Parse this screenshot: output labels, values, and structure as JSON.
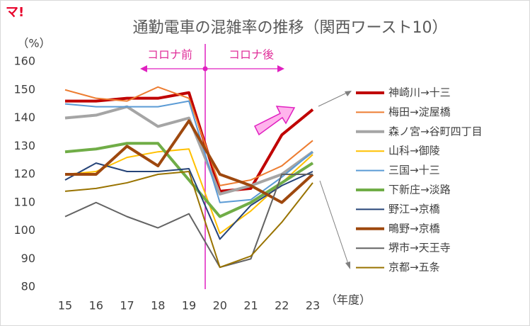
{
  "logo": "マ!",
  "chart_data": {
    "type": "line",
    "title": "通勤電車の混雑率の推移（関西ワースト10）",
    "y_label": "（%）",
    "x_label": "（年度）",
    "annotations": [
      "コロナ前",
      "コロナ後"
    ],
    "categories": [
      "15",
      "16",
      "17",
      "18",
      "19",
      "20",
      "21",
      "22",
      "23"
    ],
    "ylim": [
      80,
      160
    ],
    "yticks": [
      80,
      90,
      100,
      110,
      120,
      130,
      140,
      150,
      160
    ],
    "grid": false,
    "legend": "right",
    "series": [
      {
        "name": "神崎川→十三",
        "color": "#c00000",
        "width": 4,
        "values": [
          146,
          146,
          147,
          147,
          149,
          114,
          115,
          134,
          143
        ]
      },
      {
        "name": "梅田→淀屋橋",
        "color": "#ed7d31",
        "width": 2,
        "values": [
          150,
          147,
          146,
          151,
          147,
          116,
          118,
          123,
          132
        ]
      },
      {
        "name": "森ノ宮→谷町四丁目",
        "color": "#a5a5a5",
        "width": 4,
        "values": [
          140,
          141,
          144,
          137,
          140,
          113,
          116,
          120,
          128
        ]
      },
      {
        "name": "山科→御陵",
        "color": "#ffc000",
        "width": 2,
        "values": [
          120,
          121,
          126,
          128,
          129,
          99,
          107,
          117,
          127
        ]
      },
      {
        "name": "三国→十三",
        "color": "#5b9bd5",
        "width": 2,
        "values": [
          145,
          144,
          144,
          144,
          146,
          110,
          111,
          119,
          128
        ]
      },
      {
        "name": "下新庄→淡路",
        "color": "#70ad47",
        "width": 4,
        "values": [
          128,
          129,
          131,
          131,
          118,
          105,
          110,
          117,
          124
        ]
      },
      {
        "name": "野江→京橋",
        "color": "#264478",
        "width": 2,
        "values": [
          118,
          124,
          121,
          121,
          122,
          97,
          109,
          116,
          121
        ]
      },
      {
        "name": "鴫野→京橋",
        "color": "#9e480e",
        "width": 4,
        "values": [
          120,
          120,
          130,
          123,
          139,
          120,
          116,
          110,
          120
        ]
      },
      {
        "name": "堺市→天王寺",
        "color": "#636363",
        "width": 2,
        "values": [
          105,
          110,
          105,
          101,
          106,
          87,
          90,
          120,
          120
        ]
      },
      {
        "name": "京都→五条",
        "color": "#997300",
        "width": 2,
        "values": [
          114,
          115,
          117,
          120,
          121,
          87,
          91,
          103,
          117
        ]
      }
    ]
  }
}
